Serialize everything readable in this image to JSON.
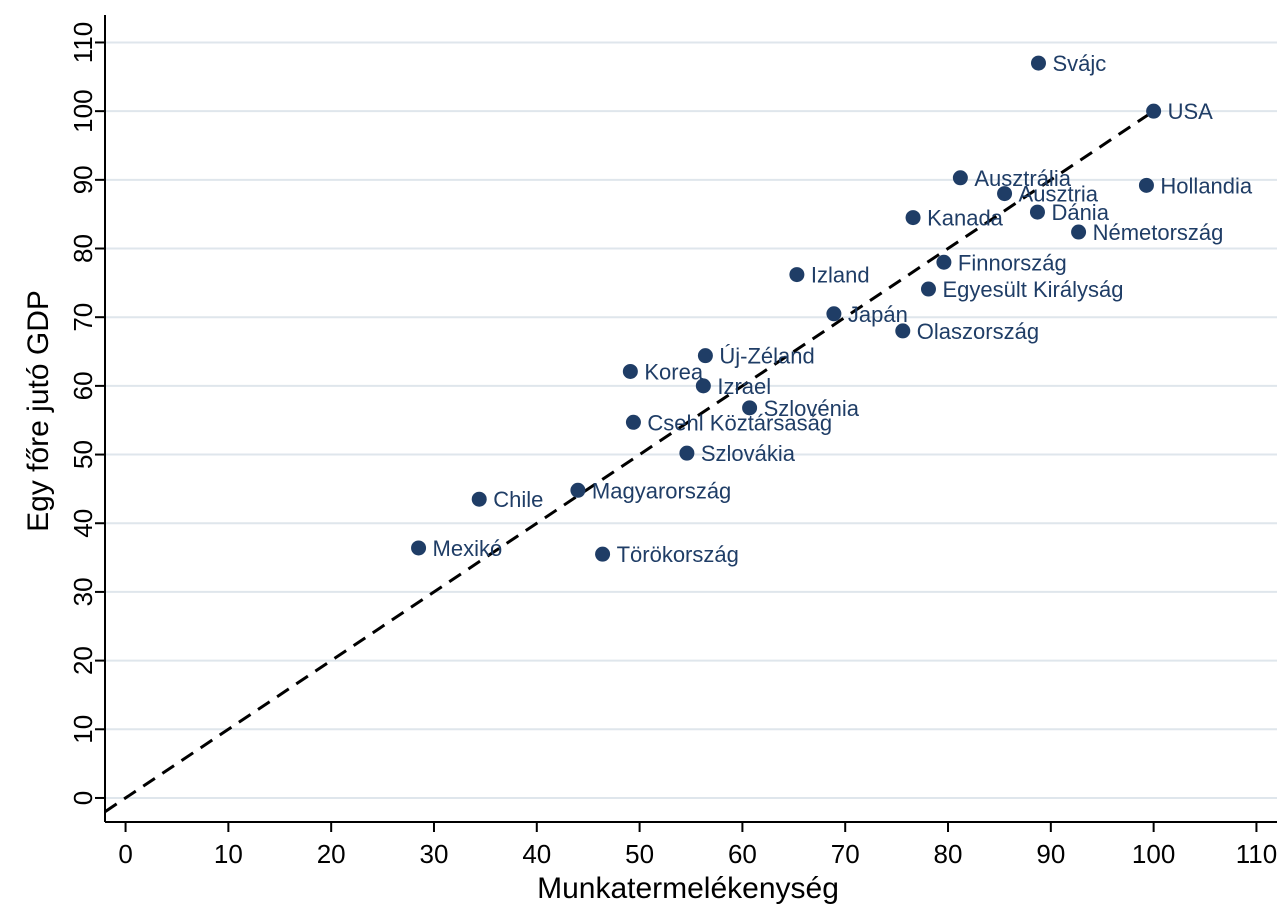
{
  "chart_data": {
    "type": "scatter",
    "xlabel": "Munkatermelékenység",
    "ylabel": "Egy főre jutó GDP",
    "xlim": [
      -2,
      112
    ],
    "ylim": [
      -3.5,
      114
    ],
    "xticks": [
      0,
      10,
      20,
      30,
      40,
      50,
      60,
      70,
      80,
      90,
      100,
      110
    ],
    "yticks": [
      0,
      10,
      20,
      30,
      40,
      50,
      60,
      70,
      80,
      90,
      100,
      110
    ],
    "grid": "horizontal",
    "reference_line": {
      "style": "dashed",
      "from": [
        -2,
        -2
      ],
      "to": [
        100,
        100
      ]
    },
    "marker_color": "#1f3d66",
    "points": [
      {
        "label": "Svájc",
        "x": 88.8,
        "y": 107
      },
      {
        "label": "USA",
        "x": 100,
        "y": 100
      },
      {
        "label": "Ausztrália",
        "x": 81.2,
        "y": 90.3
      },
      {
        "label": "Ausztria",
        "x": 85.5,
        "y": 88
      },
      {
        "label": "Hollandia",
        "x": 99.3,
        "y": 89.2
      },
      {
        "label": "Dánia",
        "x": 88.7,
        "y": 85.3
      },
      {
        "label": "Kanada",
        "x": 76.6,
        "y": 84.5
      },
      {
        "label": "Németország",
        "x": 92.7,
        "y": 82.4
      },
      {
        "label": "Finnország",
        "x": 79.6,
        "y": 78
      },
      {
        "label": "Izland",
        "x": 65.3,
        "y": 76.2
      },
      {
        "label": "Egyesült Királyság",
        "x": 78.1,
        "y": 74.1
      },
      {
        "label": "Japán",
        "x": 68.9,
        "y": 70.5
      },
      {
        "label": "Olaszország",
        "x": 75.6,
        "y": 68
      },
      {
        "label": "Új-Zéland",
        "x": 56.4,
        "y": 64.4
      },
      {
        "label": "Korea",
        "x": 49.1,
        "y": 62.1
      },
      {
        "label": "Izrael",
        "x": 56.2,
        "y": 60
      },
      {
        "label": "Szlovénia",
        "x": 60.7,
        "y": 56.8
      },
      {
        "label": "Csehl Köztársaság",
        "x": 49.4,
        "y": 54.7
      },
      {
        "label": "Szlovákia",
        "x": 54.6,
        "y": 50.2
      },
      {
        "label": "Chile",
        "x": 34.4,
        "y": 43.5
      },
      {
        "label": "Magyarország",
        "x": 44,
        "y": 44.8
      },
      {
        "label": "Mexikó",
        "x": 28.5,
        "y": 36.4
      },
      {
        "label": "Törökország",
        "x": 46.4,
        "y": 35.5
      }
    ]
  }
}
